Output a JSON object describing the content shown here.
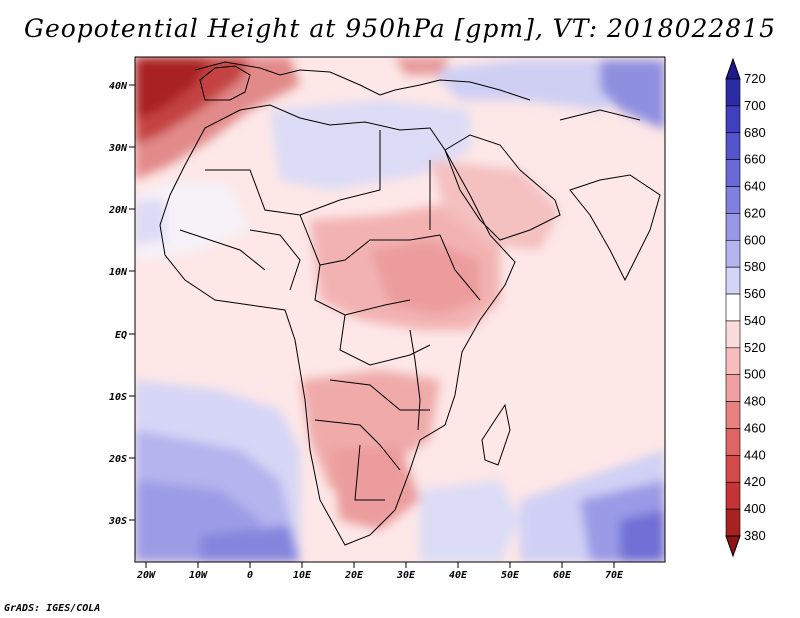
{
  "title": "Geopotential Height at 950hPa [gpm], VT: 2018022815",
  "credit": "GrADS: IGES/COLA",
  "map": {
    "variable": "Geopotential Height",
    "level": "950hPa",
    "units": "gpm",
    "valid_time": "2018022815",
    "lon_range": [
      -22,
      80
    ],
    "lat_range": [
      -37,
      45
    ],
    "lon_ticks": [
      "20W",
      "10W",
      "0",
      "10E",
      "20E",
      "30E",
      "40E",
      "50E",
      "60E",
      "70E"
    ],
    "lat_ticks": [
      "40N",
      "30N",
      "20N",
      "10N",
      "EQ",
      "10S",
      "20S",
      "30S"
    ]
  },
  "colorbar": {
    "labels": [
      "720",
      "700",
      "680",
      "660",
      "640",
      "620",
      "600",
      "580",
      "560",
      "540",
      "520",
      "500",
      "480",
      "460",
      "440",
      "420",
      "400",
      "380"
    ],
    "colors": [
      "#1f1a8c",
      "#2b2ba6",
      "#3f3fbf",
      "#5454cc",
      "#6a6ad6",
      "#8080de",
      "#9898e6",
      "#b4b4ee",
      "#d4d4f6",
      "#ffffff",
      "#fbdcdc",
      "#f6bebe",
      "#f0a0a0",
      "#e88282",
      "#e06464",
      "#d44a4a",
      "#c43434",
      "#a82222",
      "#8b1414"
    ]
  }
}
